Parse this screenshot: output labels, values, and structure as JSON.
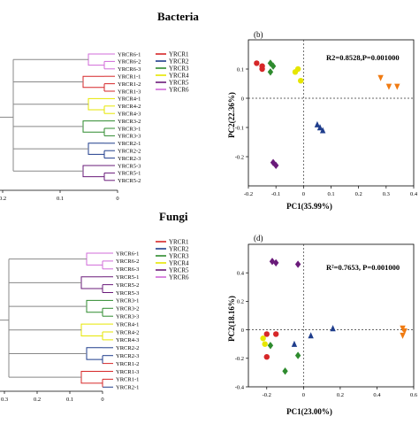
{
  "titles": {
    "bacteria": "Bacteria",
    "fungi": "Fungi"
  },
  "colors": {
    "YRCR1": "#d62728",
    "YRCR2": "#1f3d8c",
    "YRCR3": "#2e8b2e",
    "YRCR4": "#e6e600",
    "YRCR5": "#6a1b7a",
    "YRCR6": "#d16bd9"
  },
  "legend_groups": [
    "YRCR1",
    "YRCR2",
    "YRCR3",
    "YRCR4",
    "YRCR5",
    "YRCR6"
  ],
  "bacteria_tree": {
    "leaves": [
      "YRCR6-1",
      "YRCR6-2",
      "YRCR6-3",
      "YRCR1-1",
      "YRCR1-2",
      "YRCR1-3",
      "YRCR4-1",
      "YRCR4-2",
      "YRCR4-3",
      "YRCR3-2",
      "YRCR3-1",
      "YRCR3-3",
      "YRCR2-1",
      "YRCR2-2",
      "YRCR2-3",
      "YRCR5-3",
      "YRCR5-1",
      "YRCR5-2"
    ],
    "tick_labels": [
      "0.2",
      "0.1",
      "0"
    ]
  },
  "fungi_tree": {
    "leaves": [
      "YRCR6-1",
      "YRCR6-2",
      "YRCR6-3",
      "YRCR5-1",
      "YRCR5-2",
      "YRCR5-3",
      "YRCR3-1",
      "YRCR3-2",
      "YRCR3-3",
      "YRCR4-1",
      "YRCR4-2",
      "YRCR4-3",
      "YRCR2-2",
      "YRCR2-3",
      "YRCR1-2",
      "YRCR1-3",
      "YRCR1-1",
      "YRCR2-1"
    ],
    "tick_labels": [
      "0.3",
      "0.2",
      "0.1",
      "0"
    ]
  },
  "chart_data": [
    {
      "type": "scatter",
      "panel": "(b)",
      "title": "",
      "xlabel": "PC1(35.99%)",
      "ylabel": "PC2(22.36%)",
      "annotation": "R2=0.8528,P=0.001000",
      "xlim": [
        -0.2,
        0.4
      ],
      "ylim": [
        -0.3,
        0.2
      ],
      "xticks": [
        "-0.2",
        "-0.1",
        "0",
        "0.1",
        "0.2",
        "0.3",
        "0.4"
      ],
      "yticks": [
        "-0.2",
        "-0.1",
        "0",
        "0.1"
      ],
      "reference_lines": {
        "x": 0,
        "y": 0
      },
      "series": [
        {
          "group": "YRCR1",
          "marker": "circle",
          "x": [
            -0.17,
            -0.15,
            -0.15
          ],
          "y": [
            0.12,
            0.11,
            0.1
          ]
        },
        {
          "group": "YRCR2",
          "marker": "triangle-up",
          "x": [
            0.05,
            0.06,
            0.07
          ],
          "y": [
            -0.09,
            -0.1,
            -0.11
          ]
        },
        {
          "group": "YRCR3",
          "marker": "diamond",
          "x": [
            -0.12,
            -0.11,
            -0.12
          ],
          "y": [
            0.12,
            0.11,
            0.09
          ]
        },
        {
          "group": "YRCR4",
          "marker": "circle",
          "x": [
            -0.03,
            -0.02,
            -0.01
          ],
          "y": [
            0.09,
            0.1,
            0.06
          ]
        },
        {
          "group": "YRCR5",
          "marker": "diamond",
          "x": [
            -0.11,
            -0.1
          ],
          "y": [
            -0.22,
            -0.23
          ]
        },
        {
          "group": "orange",
          "marker": "triangle-down",
          "x": [
            0.28,
            0.31,
            0.34
          ],
          "y": [
            0.07,
            0.04,
            0.04
          ]
        }
      ]
    },
    {
      "type": "scatter",
      "panel": "(d)",
      "title": "",
      "xlabel": "PC1(23.00%)",
      "ylabel": "PC2(18.16%)",
      "annotation": "R²=0.7653, P=0.001000",
      "xlim": [
        -0.3,
        0.6
      ],
      "ylim": [
        -0.4,
        0.6
      ],
      "xticks": [
        "-0.2",
        "0",
        "0.2",
        "0.4",
        "0.6"
      ],
      "yticks": [
        "-0.4",
        "-0.2",
        "0",
        "0.2",
        "0.4"
      ],
      "reference_lines": {
        "x": 0,
        "y": 0
      },
      "series": [
        {
          "group": "YRCR1",
          "marker": "circle",
          "x": [
            -0.2,
            -0.15,
            -0.2
          ],
          "y": [
            -0.03,
            -0.03,
            -0.19
          ]
        },
        {
          "group": "YRCR2",
          "marker": "triangle-up",
          "x": [
            -0.05,
            0.04,
            0.16
          ],
          "y": [
            -0.1,
            -0.04,
            0.01
          ]
        },
        {
          "group": "YRCR3",
          "marker": "diamond",
          "x": [
            -0.18,
            -0.1,
            -0.03
          ],
          "y": [
            -0.11,
            -0.29,
            -0.18
          ]
        },
        {
          "group": "YRCR4",
          "marker": "circle",
          "x": [
            -0.22,
            -0.21
          ],
          "y": [
            -0.06,
            -0.1
          ]
        },
        {
          "group": "YRCR5",
          "marker": "diamond",
          "x": [
            -0.17,
            -0.15,
            -0.03
          ],
          "y": [
            0.48,
            0.47,
            0.46
          ]
        },
        {
          "group": "orange",
          "marker": "triangle-down",
          "x": [
            0.54,
            0.55,
            0.54
          ],
          "y": [
            0.01,
            -0.01,
            -0.04
          ]
        }
      ]
    }
  ]
}
